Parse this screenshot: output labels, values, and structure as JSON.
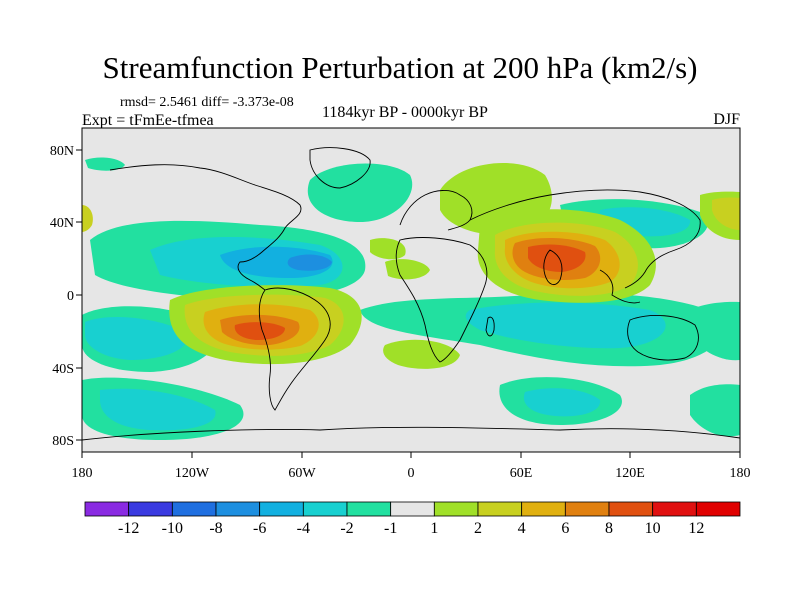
{
  "title": "Streamfunction Perturbation at 200 hPa (km2/s)",
  "stats_text": "rmsd= 2.5461  diff= -3.373e-08",
  "experiment_text": "Expt = tFmEe-tfmea",
  "period_text": "1184kyr BP - 0000kyr BP",
  "season_text": "DJF",
  "map": {
    "lon_ticks": [
      "180",
      "120W",
      "60W",
      "0",
      "60E",
      "120E",
      "180"
    ],
    "lat_ticks": [
      "80N",
      "40N",
      "0",
      "40S",
      "80S"
    ],
    "background_color": "#e6e6e6"
  },
  "colorbar": {
    "labels": [
      "-12",
      "-10",
      "-8",
      "-6",
      "-4",
      "-2",
      "-1",
      "1",
      "2",
      "4",
      "6",
      "8",
      "10",
      "12"
    ],
    "colors": [
      "#8a2be2",
      "#3a3ae0",
      "#1f6fe0",
      "#1d8fe0",
      "#12b0e0",
      "#18d0d0",
      "#22e0a0",
      "#e6e6e6",
      "#a0e028",
      "#c8d020",
      "#e0b010",
      "#e08010",
      "#e05010",
      "#e01010",
      "#e00000"
    ]
  },
  "chart_data": {
    "type": "heatmap",
    "title": "Streamfunction Perturbation at 200 hPa (km2/s)",
    "units": "km2/s",
    "x_axis": {
      "ticks": [
        "180",
        "120W",
        "60W",
        "0",
        "60E",
        "120E",
        "180"
      ],
      "range": [
        -180,
        180
      ]
    },
    "y_axis": {
      "ticks": [
        "80N",
        "40N",
        "0",
        "40S",
        "80S"
      ],
      "range": [
        -90,
        90
      ]
    },
    "features": [
      {
        "lon": -85,
        "lat": -20,
        "value": 11
      },
      {
        "lon": -110,
        "lat": 18,
        "value": -7
      },
      {
        "lon": 85,
        "lat": 25,
        "value": 11
      },
      {
        "lon": -60,
        "lat": 58,
        "value": -3
      },
      {
        "lon": 90,
        "lat": -18,
        "value": -5
      },
      {
        "lon": -165,
        "lat": -28,
        "value": -5
      },
      {
        "lon": -150,
        "lat": -55,
        "value": -4
      },
      {
        "lon": -20,
        "lat": -55,
        "value": 2
      },
      {
        "lon": 50,
        "lat": -50,
        "value": -3
      },
      {
        "lon": 175,
        "lat": -45,
        "value": -4
      },
      {
        "lon": -10,
        "lat": -25,
        "value": 2
      }
    ]
  }
}
